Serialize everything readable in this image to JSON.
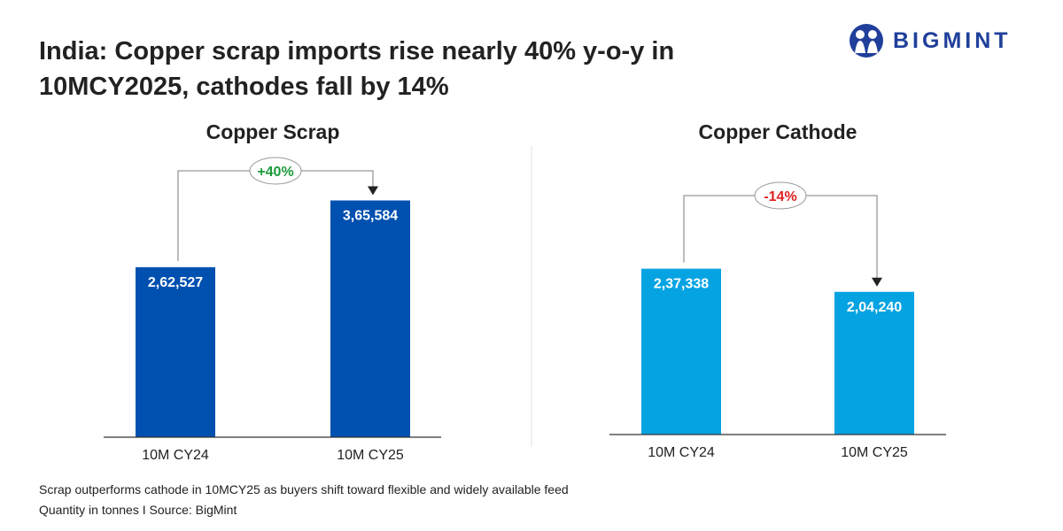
{
  "header": {
    "title": "India: Copper scrap imports rise nearly 40% y-o-y in 10MCY2025, cathodes fall by 14%",
    "logo_text": "BIGMINT",
    "logo_icon": "people-icon",
    "brand_color": "#1f3f9a"
  },
  "chart_data": [
    {
      "type": "bar",
      "title": "Copper Scrap",
      "categories": [
        "10M CY24",
        "10M CY25"
      ],
      "values": [
        262527,
        365584
      ],
      "data_labels": [
        "2,62,527",
        "3,65,584"
      ],
      "change_label": "+40%",
      "change_color": "#1a9a3a",
      "bar_color": "#0050b0",
      "ylim": [
        0,
        410000
      ],
      "grid": false
    },
    {
      "type": "bar",
      "title": "Copper Cathode",
      "categories": [
        "10M CY24",
        "10M CY25"
      ],
      "values": [
        237338,
        204240
      ],
      "data_labels": [
        "2,37,338",
        "2,04,240"
      ],
      "change_label": "-14%",
      "change_color": "#e02020",
      "bar_color": "#06a3e2",
      "ylim": [
        0,
        380000
      ],
      "grid": false
    }
  ],
  "footer": {
    "note": "Scrap outperforms cathode in 10MCY25 as buyers shift toward flexible and widely available feed",
    "source": "Quantity in tonnes  I  Source: BigMint"
  }
}
